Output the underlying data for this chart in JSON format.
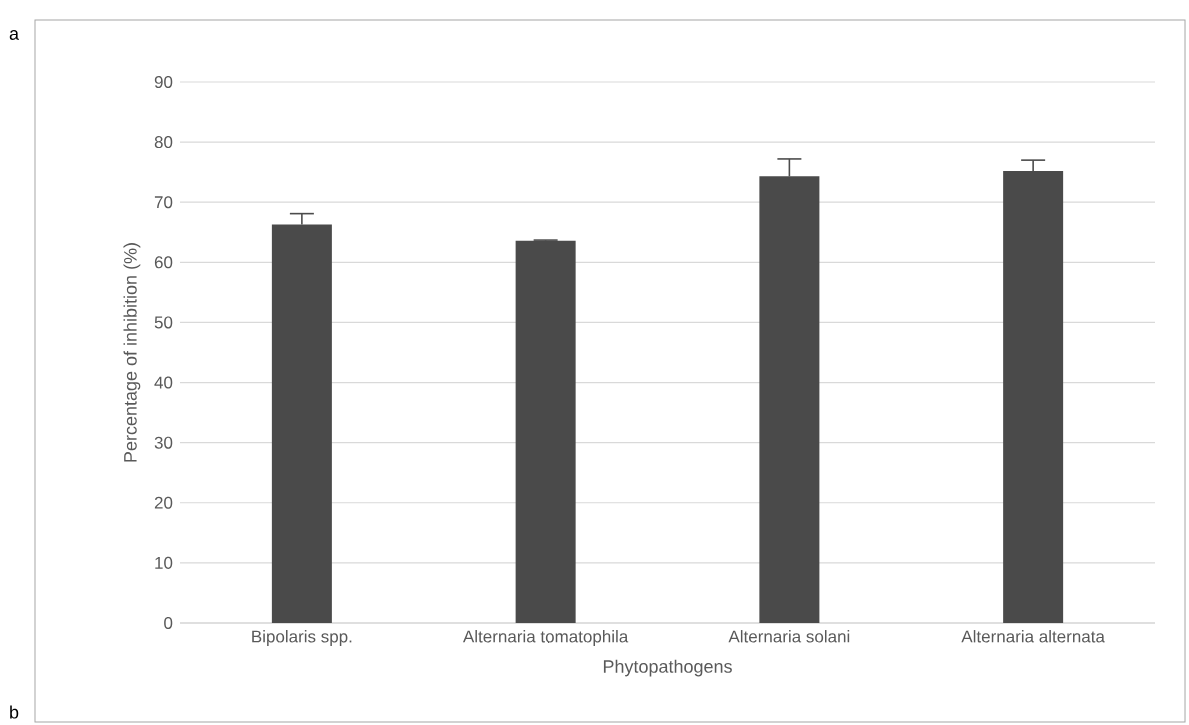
{
  "chart_data": {
    "type": "bar",
    "xlabel": "Phytopathogens",
    "ylabel": "Percentage of inhibition (%)",
    "categories": [
      "Bipolaris spp.",
      "Alternaria tomatophila",
      "Alternaria solani",
      "Alternaria alternata"
    ],
    "values": [
      66.3,
      63.6,
      74.3,
      75.2
    ],
    "errors": [
      [
        66.3,
        68.1
      ],
      [
        63.6,
        63.7
      ],
      [
        74.3,
        77.2
      ],
      [
        75.2,
        77.0
      ]
    ],
    "color": "#4a4a4a",
    "ylim": [
      0,
      90
    ],
    "yticks": [
      0,
      10,
      20,
      30,
      40,
      50,
      60,
      70,
      80,
      90
    ],
    "grid": "y",
    "annotations": [
      "a",
      "b"
    ]
  }
}
